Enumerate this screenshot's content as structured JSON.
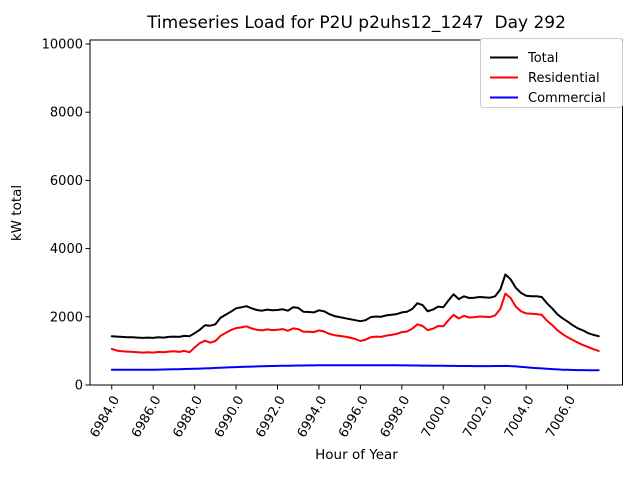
{
  "chart_data": {
    "type": "line",
    "title": "Timeseries Load for P2U p2uhs12_1247  Day 292",
    "xlabel": "Hour of Year",
    "ylabel": "kW total",
    "xlim": [
      6982.95,
      7008.65
    ],
    "ylim": [
      0,
      10000
    ],
    "grid": false,
    "x_ticks": [
      6984,
      6986,
      6988,
      6990,
      6992,
      6994,
      6996,
      6998,
      7000,
      7002,
      7004,
      7006
    ],
    "x_tick_labels": [
      "6984.0",
      "6986.0",
      "6988.0",
      "6990.0",
      "6992.0",
      "6994.0",
      "6996.0",
      "6998.0",
      "7000.0",
      "7002.0",
      "7004.0",
      "7006.0"
    ],
    "y_ticks": [
      0,
      2000,
      4000,
      6000,
      8000,
      10000
    ],
    "y_tick_labels": [
      "0",
      "2000",
      "4000",
      "6000",
      "8000",
      "10000"
    ],
    "x_tick_rotation_deg": 60,
    "x_start": 6984.0,
    "x_step": 0.25,
    "legend": {
      "position": "upper right",
      "border_color": "#cccccc",
      "entries": [
        {
          "label": "Total",
          "color": "#000000"
        },
        {
          "label": "Residential",
          "color": "#ff0000"
        },
        {
          "label": "Commercial",
          "color": "#0000ff"
        }
      ]
    },
    "series": [
      {
        "name": "Total",
        "color": "#000000",
        "values": [
          1430,
          1420,
          1410,
          1400,
          1400,
          1390,
          1380,
          1390,
          1380,
          1400,
          1390,
          1410,
          1420,
          1410,
          1440,
          1430,
          1520,
          1620,
          1750,
          1740,
          1780,
          1970,
          2060,
          2150,
          2250,
          2280,
          2310,
          2250,
          2200,
          2180,
          2210,
          2190,
          2200,
          2220,
          2180,
          2280,
          2260,
          2150,
          2140,
          2130,
          2190,
          2160,
          2080,
          2020,
          1990,
          1960,
          1930,
          1900,
          1870,
          1900,
          1990,
          2010,
          2000,
          2040,
          2060,
          2080,
          2130,
          2150,
          2230,
          2400,
          2340,
          2160,
          2210,
          2300,
          2280,
          2480,
          2660,
          2520,
          2600,
          2550,
          2560,
          2580,
          2570,
          2560,
          2600,
          2800,
          3240,
          3100,
          2850,
          2700,
          2620,
          2600,
          2600,
          2580,
          2400,
          2250,
          2080,
          1960,
          1860,
          1750,
          1660,
          1600,
          1520,
          1470,
          1430
        ]
      },
      {
        "name": "Residential",
        "color": "#ff0000",
        "values": [
          1060,
          1010,
          990,
          980,
          970,
          960,
          950,
          960,
          950,
          970,
          960,
          980,
          990,
          970,
          1000,
          960,
          1100,
          1230,
          1300,
          1240,
          1290,
          1440,
          1530,
          1610,
          1670,
          1690,
          1720,
          1660,
          1620,
          1600,
          1630,
          1610,
          1620,
          1640,
          1590,
          1660,
          1640,
          1560,
          1560,
          1550,
          1600,
          1570,
          1500,
          1460,
          1440,
          1420,
          1390,
          1350,
          1290,
          1330,
          1400,
          1420,
          1410,
          1450,
          1470,
          1500,
          1550,
          1570,
          1650,
          1780,
          1730,
          1610,
          1650,
          1730,
          1720,
          1900,
          2060,
          1950,
          2030,
          1980,
          1990,
          2010,
          2000,
          1990,
          2040,
          2230,
          2680,
          2550,
          2300,
          2160,
          2100,
          2090,
          2080,
          2060,
          1890,
          1760,
          1610,
          1500,
          1400,
          1320,
          1240,
          1170,
          1110,
          1050,
          1000
        ]
      },
      {
        "name": "Commercial",
        "color": "#0000ff",
        "values": [
          450,
          449,
          448,
          448,
          448,
          447,
          447,
          448,
          450,
          452,
          455,
          458,
          461,
          464,
          468,
          472,
          477,
          482,
          488,
          494,
          500,
          506,
          512,
          518,
          524,
          530,
          536,
          541,
          546,
          550,
          554,
          558,
          561,
          564,
          567,
          569,
          571,
          573,
          575,
          576,
          577,
          578,
          579,
          580,
          580,
          581,
          581,
          581,
          581,
          581,
          580,
          580,
          579,
          579,
          578,
          577,
          576,
          575,
          573,
          572,
          570,
          568,
          566,
          565,
          563,
          561,
          560,
          558,
          557,
          556,
          555,
          554,
          553,
          554,
          556,
          558,
          560,
          555,
          545,
          532,
          520,
          508,
          497,
          486,
          476,
          466,
          457,
          450,
          445,
          441,
          438,
          436,
          435,
          434,
          433
        ]
      }
    ]
  }
}
